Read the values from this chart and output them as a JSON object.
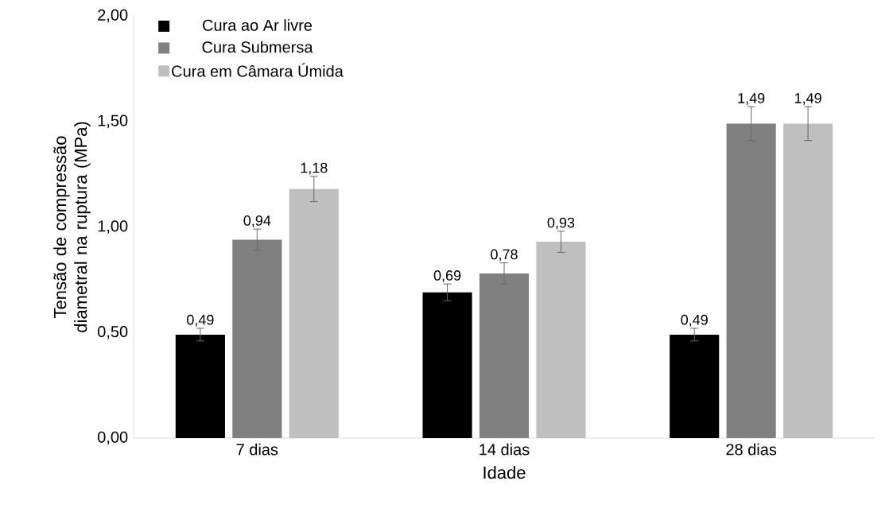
{
  "chart_data": {
    "type": "bar",
    "xlabel": "Idade",
    "ylabel": "Tensão de compressão diametral na ruptura (MPa)",
    "categories": [
      "7 dias",
      "14 dias",
      "28 dias"
    ],
    "series": [
      {
        "name": "Cura ao Ar livre",
        "color": "#000000",
        "values": [
          0.49,
          0.69,
          0.49
        ],
        "errors": [
          0.03,
          0.04,
          0.03
        ],
        "value_labels": [
          "0,49",
          "0,69",
          "0,49"
        ]
      },
      {
        "name": "Cura Submersa",
        "color": "#808080",
        "values": [
          0.94,
          0.78,
          1.49
        ],
        "errors": [
          0.05,
          0.05,
          0.08
        ],
        "value_labels": [
          "0,94",
          "0,78",
          "1,49"
        ]
      },
      {
        "name": "Cura em Câmara Úmida",
        "color": "#bfbfbf",
        "values": [
          1.18,
          0.93,
          1.49
        ],
        "errors": [
          0.06,
          0.05,
          0.08
        ],
        "value_labels": [
          "1,18",
          "0,93",
          "1,49"
        ]
      }
    ],
    "ylim": [
      0,
      2
    ],
    "yticks": [
      {
        "value": 0,
        "label": "0,00"
      },
      {
        "value": 0.5,
        "label": "0,50"
      },
      {
        "value": 1,
        "label": "1,00"
      },
      {
        "value": 1.5,
        "label": "1,50"
      },
      {
        "value": 2,
        "label": "2,00"
      }
    ],
    "grid": false,
    "legend": "top left"
  }
}
